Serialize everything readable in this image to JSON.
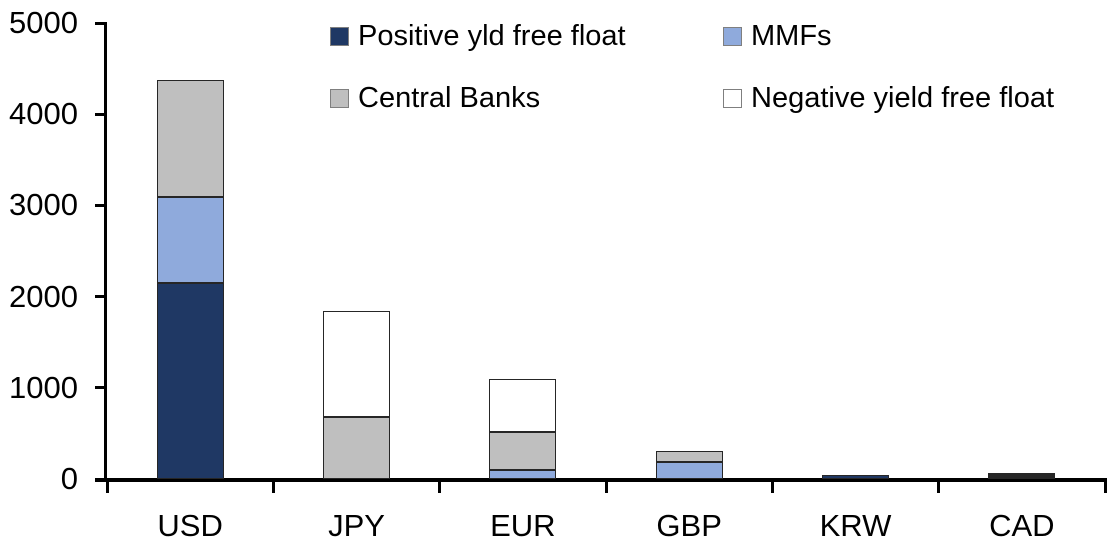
{
  "chart_data": {
    "type": "bar",
    "stacked": true,
    "title": "",
    "xlabel": "",
    "ylabel": "",
    "categories": [
      "USD",
      "JPY",
      "EUR",
      "GBP",
      "KRW",
      "CAD"
    ],
    "series": [
      {
        "name": "Positive yld free float",
        "color": "#1F3864",
        "values": [
          2150,
          0,
          0,
          0,
          40,
          20
        ]
      },
      {
        "name": "MMFs",
        "color": "#8FAADC",
        "values": [
          940,
          0,
          100,
          190,
          0,
          20
        ]
      },
      {
        "name": "Central Banks",
        "color": "#BFBFBF",
        "values": [
          1290,
          680,
          410,
          120,
          0,
          25
        ]
      },
      {
        "name": "Negative yield free float",
        "color": "#FFFFFF",
        "values": [
          0,
          1160,
          590,
          0,
          0,
          0
        ]
      }
    ],
    "totals": {
      "USD": 4380,
      "JPY": 1840,
      "EUR": 1100,
      "GBP": 310,
      "KRW": 40,
      "CAD": 65
    },
    "ylim": [
      0,
      5000
    ],
    "y_ticks": [
      0,
      1000,
      2000,
      3000,
      4000,
      5000
    ],
    "legend_position": "top",
    "legend_rows": [
      [
        "Positive yld free float",
        "MMFs"
      ],
      [
        "Central Banks",
        "Negative yield free float"
      ]
    ],
    "grid": false,
    "axis_color": "#000000",
    "segment_border_color": "#262626"
  }
}
